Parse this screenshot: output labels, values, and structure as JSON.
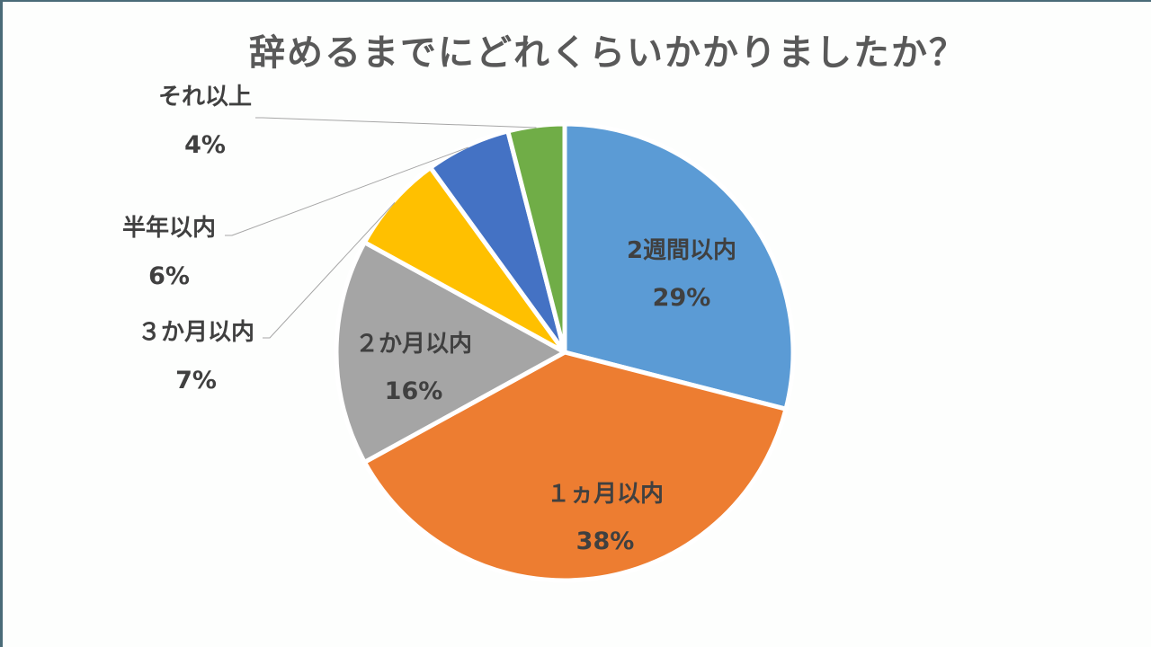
{
  "chart_data": {
    "type": "pie",
    "title": "辞めるまでにどれくらいかかりましたか？",
    "start_angle_deg": 0,
    "direction": "clockwise",
    "categories": [
      "2週間以内",
      "１ヵ月以内",
      "２か月以内",
      "３か月以内",
      "半年以内",
      "それ以上"
    ],
    "values": [
      29,
      38,
      16,
      7,
      6,
      4
    ],
    "value_labels": [
      "29%",
      "38%",
      "16%",
      "7%",
      "6%",
      "4%"
    ],
    "colors": [
      "#5b9bd5",
      "#ed7d31",
      "#a5a5a5",
      "#ffc000",
      "#4472c4",
      "#70ad47"
    ],
    "data_labels": [
      {
        "name": "2週間以内",
        "pct": "29%",
        "position": "inside"
      },
      {
        "name": "１ヵ月以内",
        "pct": "38%",
        "position": "inside"
      },
      {
        "name": "２か月以内",
        "pct": "16%",
        "position": "inside"
      },
      {
        "name": "３か月以内",
        "pct": "7%",
        "position": "outside-leader"
      },
      {
        "name": "半年以内",
        "pct": "6%",
        "position": "outside-leader"
      },
      {
        "name": "それ以上",
        "pct": "4%",
        "position": "outside-leader"
      }
    ],
    "legend": "none"
  }
}
